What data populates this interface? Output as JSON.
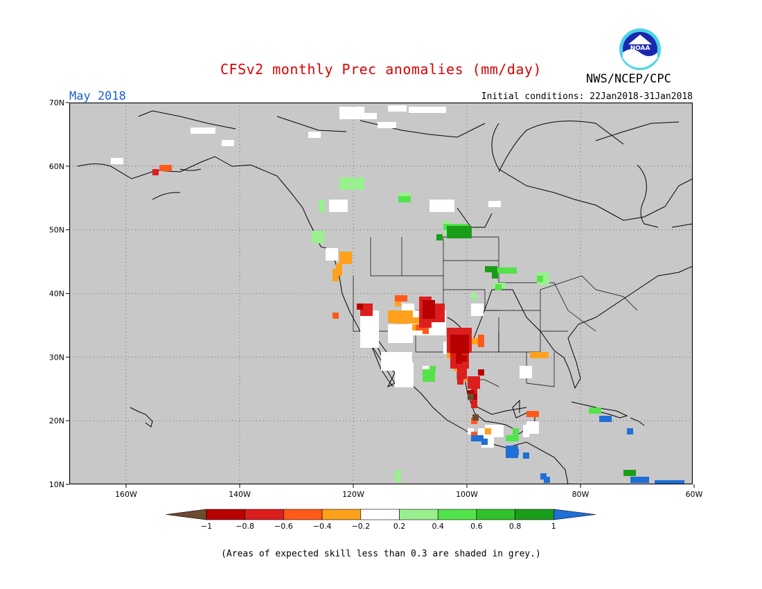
{
  "header": {
    "title": "CFSv2 monthly Prec anomalies (mm/day)",
    "month": "May 2018",
    "initial_conditions": "Initial conditions: 22Jan2018-31Jan2018",
    "agency": "NWS/NCEP/CPC",
    "logo_text": "NOAA"
  },
  "map": {
    "region": "North America",
    "lon_range": [
      -170,
      -60
    ],
    "lat_range": [
      10,
      70
    ],
    "x_ticks": [
      "160W",
      "140W",
      "120W",
      "100W",
      "80W",
      "60W"
    ],
    "y_ticks": [
      "70N",
      "60N",
      "50N",
      "40N",
      "30N",
      "20N",
      "10N"
    ],
    "background_color": "#c8c8c8",
    "coast_color": "#000000",
    "grid": "dotted"
  },
  "colorbar": {
    "colors": [
      "#6e4a2e",
      "#b80000",
      "#dd1e1e",
      "#ff5a1a",
      "#ffa11a",
      "#ffffff",
      "#9af08f",
      "#53e34b",
      "#2fc22b",
      "#1a9e1a",
      "#1f6fd6"
    ],
    "labels": [
      "−1",
      "−0.8",
      "−0.6",
      "−0.4",
      "−0.2",
      "0.2",
      "0.4",
      "0.6",
      "0.8",
      "1"
    ]
  },
  "footnote": "(Areas of expected skill less than 0.3 are shaded in grey.)"
}
